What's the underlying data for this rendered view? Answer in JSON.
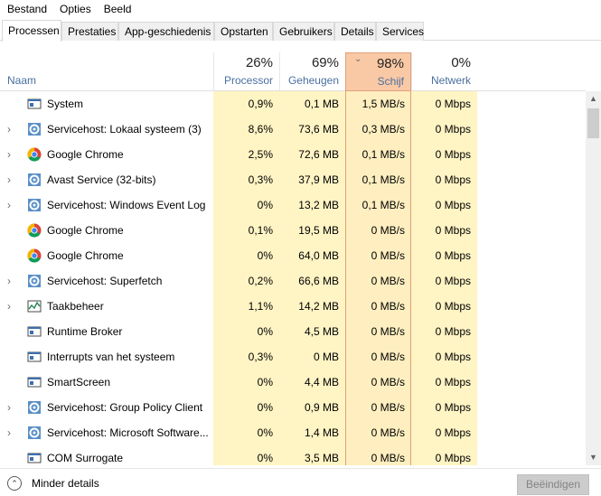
{
  "menu": [
    "Bestand",
    "Opties",
    "Beeld"
  ],
  "tabs": [
    "Processen",
    "Prestaties",
    "App-geschiedenis",
    "Opstarten",
    "Gebruikers",
    "Details",
    "Services"
  ],
  "active_tab": "Processen",
  "columns": {
    "name": {
      "label": "Naam"
    },
    "cpu": {
      "percent": "26%",
      "label": "Processor"
    },
    "mem": {
      "percent": "69%",
      "label": "Geheugen"
    },
    "disk": {
      "percent": "98%",
      "label": "Schijf"
    },
    "net": {
      "percent": "0%",
      "label": "Netwerk"
    }
  },
  "processes": [
    {
      "name": "System",
      "icon": "window-icon",
      "expandable": false,
      "cpu": "0,9%",
      "mem": "0,1 MB",
      "disk": "1,5 MB/s",
      "net": "0 Mbps"
    },
    {
      "name": "Servicehost: Lokaal systeem (3)",
      "icon": "gear-icon",
      "expandable": true,
      "cpu": "8,6%",
      "mem": "73,6 MB",
      "disk": "0,3 MB/s",
      "net": "0 Mbps"
    },
    {
      "name": "Google Chrome",
      "icon": "chrome-icon",
      "expandable": true,
      "cpu": "2,5%",
      "mem": "72,6 MB",
      "disk": "0,1 MB/s",
      "net": "0 Mbps"
    },
    {
      "name": "Avast Service (32-bits)",
      "icon": "gear-icon",
      "expandable": true,
      "cpu": "0,3%",
      "mem": "37,9 MB",
      "disk": "0,1 MB/s",
      "net": "0 Mbps"
    },
    {
      "name": "Servicehost: Windows Event Log",
      "icon": "gear-icon",
      "expandable": true,
      "cpu": "0%",
      "mem": "13,2 MB",
      "disk": "0,1 MB/s",
      "net": "0 Mbps"
    },
    {
      "name": "Google Chrome",
      "icon": "chrome-icon",
      "expandable": false,
      "cpu": "0,1%",
      "mem": "19,5 MB",
      "disk": "0 MB/s",
      "net": "0 Mbps"
    },
    {
      "name": "Google Chrome",
      "icon": "chrome-icon",
      "expandable": false,
      "cpu": "0%",
      "mem": "64,0 MB",
      "disk": "0 MB/s",
      "net": "0 Mbps"
    },
    {
      "name": "Servicehost: Superfetch",
      "icon": "gear-icon",
      "expandable": true,
      "cpu": "0,2%",
      "mem": "66,6 MB",
      "disk": "0 MB/s",
      "net": "0 Mbps"
    },
    {
      "name": "Taakbeheer",
      "icon": "taskmgr-icon",
      "expandable": true,
      "cpu": "1,1%",
      "mem": "14,2 MB",
      "disk": "0 MB/s",
      "net": "0 Mbps"
    },
    {
      "name": "Runtime Broker",
      "icon": "window-icon",
      "expandable": false,
      "cpu": "0%",
      "mem": "4,5 MB",
      "disk": "0 MB/s",
      "net": "0 Mbps"
    },
    {
      "name": "Interrupts van het systeem",
      "icon": "window-icon",
      "expandable": false,
      "cpu": "0,3%",
      "mem": "0 MB",
      "disk": "0 MB/s",
      "net": "0 Mbps"
    },
    {
      "name": "SmartScreen",
      "icon": "window-icon",
      "expandable": false,
      "cpu": "0%",
      "mem": "4,4 MB",
      "disk": "0 MB/s",
      "net": "0 Mbps"
    },
    {
      "name": "Servicehost: Group Policy Client",
      "icon": "gear-icon",
      "expandable": true,
      "cpu": "0%",
      "mem": "0,9 MB",
      "disk": "0 MB/s",
      "net": "0 Mbps"
    },
    {
      "name": "Servicehost: Microsoft Software...",
      "icon": "gear-icon",
      "expandable": true,
      "cpu": "0%",
      "mem": "1,4 MB",
      "disk": "0 MB/s",
      "net": "0 Mbps"
    },
    {
      "name": "COM Surrogate",
      "icon": "window-icon",
      "expandable": false,
      "cpu": "0%",
      "mem": "3,5 MB",
      "disk": "0 MB/s",
      "net": "0 Mbps"
    }
  ],
  "footer": {
    "fewer_details": "Minder details",
    "end_task": "Beëindigen"
  },
  "colors": {
    "cpu_mem_bg": "#fff4c4",
    "cpu_mem_bg_strong": "#ffe8a3",
    "disk_bg": "#ffefc0",
    "disk_header": "#f9c9a6",
    "disk_high": "#ffd27f",
    "disk_mid": "#ffe39f",
    "header_label": "#4a6fa0"
  }
}
